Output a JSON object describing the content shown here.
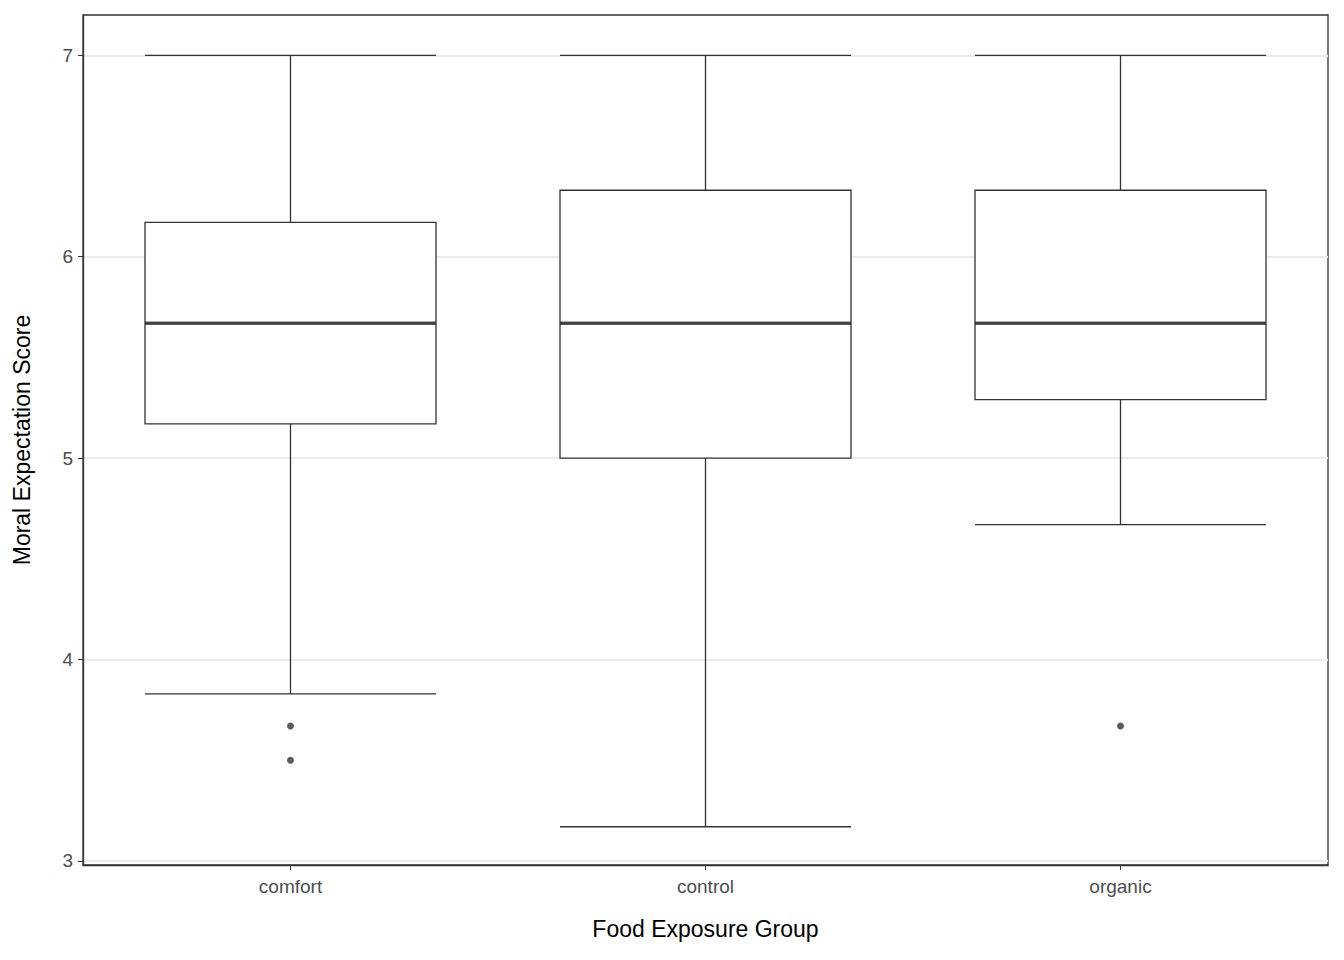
{
  "chart_data": {
    "type": "boxplot",
    "x_label": "Food Exposure Group",
    "y_label": "Moral Expectation Score",
    "categories": [
      "comfort",
      "control",
      "organic"
    ],
    "boxes": [
      {
        "whisker_low": 3.83,
        "q1": 5.17,
        "median": 5.67,
        "q3": 6.17,
        "whisker_high": 7
      },
      {
        "whisker_low": 3.17,
        "q1": 5.0,
        "median": 5.67,
        "q3": 6.33,
        "whisker_high": 7
      },
      {
        "whisker_low": 4.67,
        "q1": 5.29,
        "median": 5.67,
        "q3": 6.33,
        "whisker_high": 7
      }
    ],
    "outliers": [
      [
        3.67,
        3.5
      ],
      [],
      [
        3.67
      ]
    ],
    "color": "#333333",
    "ylim": [
      2.98,
      7.2
    ],
    "yticks": [
      3,
      4,
      5,
      6,
      7
    ],
    "grid": true
  }
}
